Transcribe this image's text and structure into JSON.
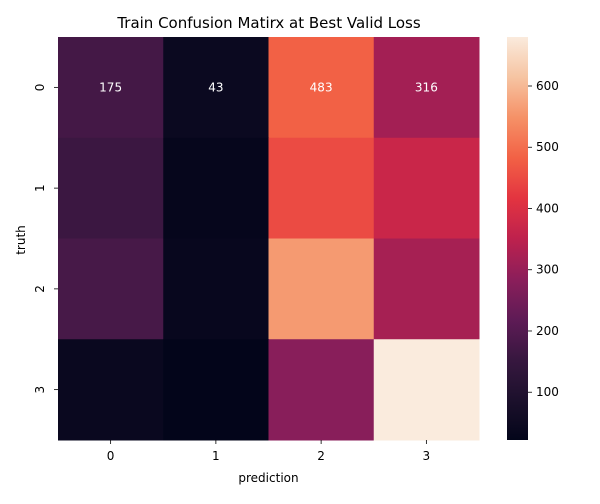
{
  "chart_data": {
    "type": "heatmap",
    "title": "Train Confusion Matirx at Best Valid Loss",
    "xlabel": "prediction",
    "ylabel": "truth",
    "x_categories": [
      "0",
      "1",
      "2",
      "3"
    ],
    "y_categories": [
      "0",
      "1",
      "2",
      "3"
    ],
    "values": [
      [
        175,
        43,
        483,
        316
      ],
      [
        160,
        30,
        450,
        370
      ],
      [
        180,
        35,
        560,
        320
      ],
      [
        40,
        22,
        280,
        680
      ]
    ],
    "value_labels": [
      [
        "175",
        "43",
        "483",
        "316"
      ],
      [
        "",
        "",
        "",
        ""
      ],
      [
        "",
        "",
        "",
        ""
      ],
      [
        "",
        "",
        "",
        ""
      ]
    ],
    "colorbar": {
      "range": [
        22,
        680
      ],
      "ticks": [
        100,
        200,
        300,
        400,
        500,
        600
      ],
      "tick_labels": [
        "100",
        "200",
        "300",
        "400",
        "500",
        "600"
      ],
      "colormap": "rocket"
    },
    "colors": {
      "annotation_text": "#ffffff",
      "axis_text": "#000000",
      "tick_color": "#000000"
    }
  }
}
